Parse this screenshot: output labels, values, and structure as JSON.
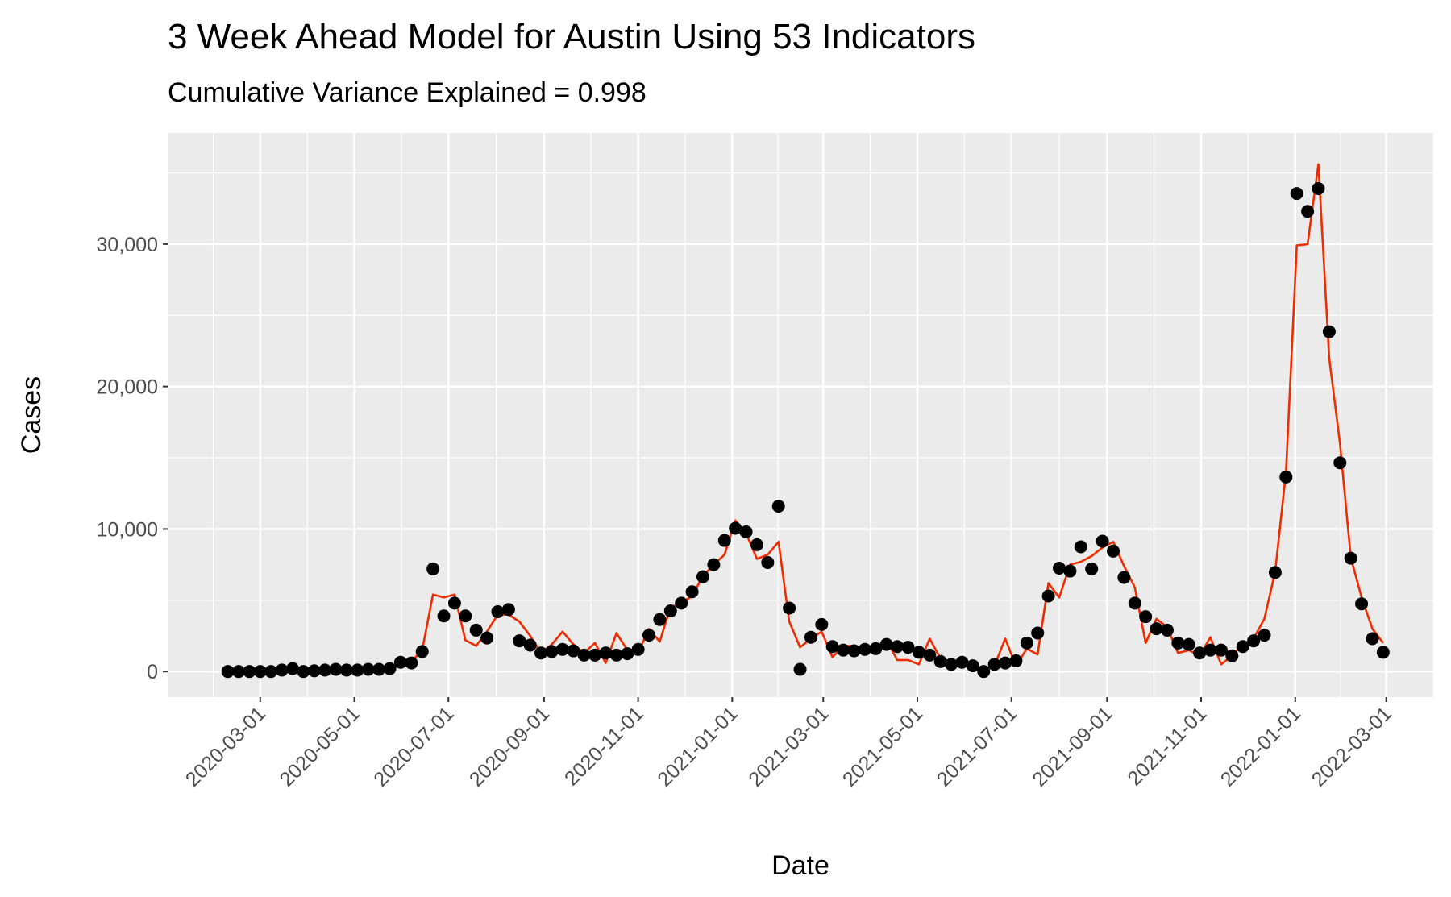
{
  "chart_data": {
    "type": "line",
    "title": "3 Week Ahead Model for Austin Using 53 Indicators",
    "subtitle": "Cumulative Variance Explained = 0.998",
    "x_label": "Date",
    "y_label": "Cases",
    "x": [
      "2020-02-09",
      "2020-02-16",
      "2020-02-23",
      "2020-03-01",
      "2020-03-08",
      "2020-03-15",
      "2020-03-22",
      "2020-03-29",
      "2020-04-05",
      "2020-04-12",
      "2020-04-19",
      "2020-04-26",
      "2020-05-03",
      "2020-05-10",
      "2020-05-17",
      "2020-05-24",
      "2020-05-31",
      "2020-06-07",
      "2020-06-14",
      "2020-06-21",
      "2020-06-28",
      "2020-07-05",
      "2020-07-12",
      "2020-07-19",
      "2020-07-26",
      "2020-08-02",
      "2020-08-09",
      "2020-08-16",
      "2020-08-23",
      "2020-08-30",
      "2020-09-06",
      "2020-09-13",
      "2020-09-20",
      "2020-09-27",
      "2020-10-04",
      "2020-10-11",
      "2020-10-18",
      "2020-10-25",
      "2020-11-01",
      "2020-11-08",
      "2020-11-15",
      "2020-11-22",
      "2020-11-29",
      "2020-12-06",
      "2020-12-13",
      "2020-12-20",
      "2020-12-27",
      "2021-01-03",
      "2021-01-10",
      "2021-01-17",
      "2021-01-24",
      "2021-01-31",
      "2021-02-07",
      "2021-02-14",
      "2021-02-21",
      "2021-02-28",
      "2021-03-07",
      "2021-03-14",
      "2021-03-21",
      "2021-03-28",
      "2021-04-04",
      "2021-04-11",
      "2021-04-18",
      "2021-04-25",
      "2021-05-02",
      "2021-05-09",
      "2021-05-16",
      "2021-05-23",
      "2021-05-30",
      "2021-06-06",
      "2021-06-13",
      "2021-06-20",
      "2021-06-27",
      "2021-07-04",
      "2021-07-11",
      "2021-07-18",
      "2021-07-25",
      "2021-08-01",
      "2021-08-08",
      "2021-08-15",
      "2021-08-22",
      "2021-08-29",
      "2021-09-05",
      "2021-09-12",
      "2021-09-19",
      "2021-09-26",
      "2021-10-03",
      "2021-10-10",
      "2021-10-17",
      "2021-10-24",
      "2021-10-31",
      "2021-11-07",
      "2021-11-14",
      "2021-11-21",
      "2021-11-28",
      "2021-12-05",
      "2021-12-12",
      "2021-12-19",
      "2021-12-26",
      "2022-01-02",
      "2022-01-09",
      "2022-01-16",
      "2022-01-23",
      "2022-01-30",
      "2022-02-06",
      "2022-02-13",
      "2022-02-20",
      "2022-02-27"
    ],
    "series": [
      {
        "style": "line",
        "color": "#ee2c00",
        "values": [
          0,
          0,
          0,
          0,
          0,
          50,
          100,
          0,
          50,
          100,
          100,
          100,
          100,
          150,
          150,
          200,
          400,
          700,
          1500,
          5400,
          5200,
          5400,
          2200,
          1800,
          2800,
          4000,
          4000,
          3500,
          2500,
          1300,
          1900,
          2800,
          1900,
          1300,
          2000,
          600,
          2700,
          1500,
          1300,
          3000,
          2100,
          4500,
          4800,
          5300,
          6700,
          7500,
          8200,
          10600,
          9700,
          7900,
          8200,
          9100,
          3500,
          1700,
          2300,
          2800,
          1000,
          1800,
          1800,
          1300,
          1700,
          2200,
          800,
          800,
          500,
          2300,
          900,
          700,
          600,
          200,
          200,
          400,
          2300,
          400,
          1600,
          1200,
          6200,
          5200,
          7500,
          7700,
          8100,
          8700,
          9100,
          7400,
          5900,
          2000,
          3700,
          3100,
          1300,
          1500,
          1100,
          2400,
          500,
          1100,
          1900,
          2300,
          3700,
          7000,
          14000,
          29900,
          30000,
          35600,
          22000,
          16000,
          8000,
          5200,
          3000,
          2000
        ]
      },
      {
        "style": "point",
        "color": "#000000",
        "values": [
          0,
          0,
          0,
          0,
          0,
          100,
          200,
          0,
          50,
          100,
          150,
          100,
          100,
          150,
          150,
          200,
          650,
          600,
          1400,
          7200,
          3900,
          4800,
          3900,
          2900,
          2350,
          4200,
          4350,
          2150,
          1850,
          1300,
          1400,
          1550,
          1450,
          1150,
          1150,
          1300,
          1150,
          1250,
          1550,
          2550,
          3650,
          4250,
          4800,
          5600,
          6650,
          7500,
          9200,
          10050,
          9800,
          8900,
          7650,
          11600,
          4450,
          150,
          2400,
          3300,
          1750,
          1500,
          1450,
          1550,
          1600,
          1900,
          1750,
          1700,
          1350,
          1150,
          700,
          500,
          650,
          400,
          0,
          500,
          600,
          750,
          2000,
          2700,
          5300,
          7250,
          7050,
          8750,
          7200,
          9150,
          8450,
          6600,
          4800,
          3850,
          3000,
          2900,
          2000,
          1900,
          1300,
          1500,
          1500,
          1100,
          1750,
          2150,
          2550,
          6950,
          13650,
          33550,
          32300,
          33900,
          23850,
          14650,
          7950,
          4750,
          2300,
          1350
        ]
      }
    ],
    "xlim": [
      "2020-01-01",
      "2022-04-01"
    ],
    "xticks": [
      "2020-03-01",
      "2020-05-01",
      "2020-07-01",
      "2020-09-01",
      "2020-11-01",
      "2021-01-01",
      "2021-03-01",
      "2021-05-01",
      "2021-07-01",
      "2021-09-01",
      "2021-11-01",
      "2022-01-01",
      "2022-03-01"
    ],
    "ylim": [
      -1800,
      37800
    ],
    "yticks": [
      0,
      {
        "value": 10000,
        "label": "10,000"
      },
      {
        "value": 20000,
        "label": "20,000"
      },
      {
        "value": 30000,
        "label": "30,000"
      }
    ],
    "grid": true
  }
}
